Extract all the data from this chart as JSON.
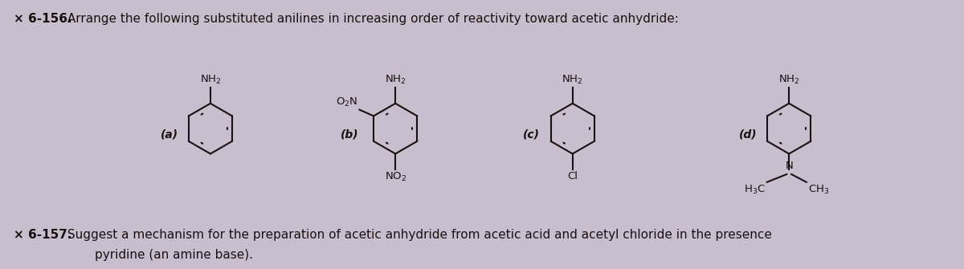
{
  "title_bold": "× 6-156.",
  "title_text": " Arrange the following substituted anilines in increasing order of reactivity toward acetic anhydride:",
  "bottom_bold": "× 6-157.",
  "bottom_text": " Suggest a mechanism for the preparation of acetic anhydride from acetic acid and acetyl chloride in the presence",
  "bottom_text2": "        pyridine (an amine base).",
  "background_color": "#c8bfce",
  "text_color": "#1a1010",
  "label_a": "(a)",
  "label_b": "(b)",
  "label_c": "(c)",
  "label_d": "(d)"
}
